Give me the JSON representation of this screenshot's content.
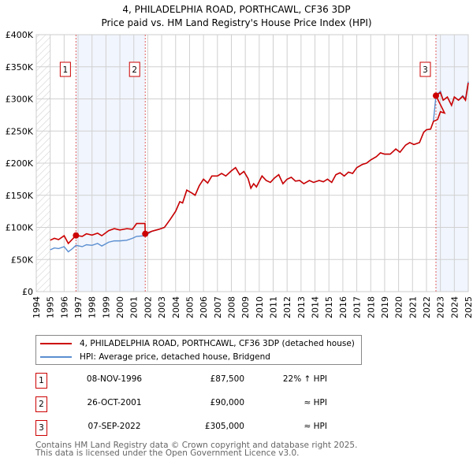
{
  "chart_data": {
    "type": "line",
    "title": "4, PHILADELPHIA ROAD, PORTHCAWL, CF36 3DP",
    "subtitle": "Price paid vs. HM Land Registry's House Price Index (HPI)",
    "xlim": [
      1994,
      2025
    ],
    "ylim": [
      0,
      400000
    ],
    "x_ticks": [
      "1994",
      "1995",
      "1996",
      "1997",
      "1998",
      "1999",
      "2000",
      "2001",
      "2002",
      "2003",
      "2004",
      "2005",
      "2006",
      "2007",
      "2008",
      "2009",
      "2010",
      "2011",
      "2012",
      "2013",
      "2014",
      "2015",
      "2016",
      "2017",
      "2018",
      "2019",
      "2020",
      "2021",
      "2022",
      "2023",
      "2024",
      "2025"
    ],
    "y_ticks": [
      {
        "v": 0,
        "l": "£0"
      },
      {
        "v": 50000,
        "l": "£50K"
      },
      {
        "v": 100000,
        "l": "£100K"
      },
      {
        "v": 150000,
        "l": "£150K"
      },
      {
        "v": 200000,
        "l": "£200K"
      },
      {
        "v": 250000,
        "l": "£250K"
      },
      {
        "v": 300000,
        "l": "£300K"
      },
      {
        "v": 350000,
        "l": "£350K"
      },
      {
        "v": 400000,
        "l": "£400K"
      }
    ],
    "grid": true,
    "shaded_periods": [
      [
        1996.85,
        2001.82
      ],
      [
        2022.68,
        2025
      ]
    ],
    "series": [
      {
        "name": "4, PHILADELPHIA ROAD, PORTHCAWL, CF36 3DP (detached house)",
        "color": "#cc0000",
        "points": [
          [
            1995,
            80000
          ],
          [
            1995.3,
            83000
          ],
          [
            1995.6,
            81000
          ],
          [
            1996,
            87000
          ],
          [
            1996.3,
            75000
          ],
          [
            1996.85,
            87500
          ],
          [
            1997.3,
            86000
          ],
          [
            1997.6,
            90000
          ],
          [
            1998,
            88000
          ],
          [
            1998.4,
            91000
          ],
          [
            1998.7,
            87000
          ],
          [
            1999.2,
            95000
          ],
          [
            1999.6,
            98000
          ],
          [
            2000,
            96000
          ],
          [
            2000.5,
            98000
          ],
          [
            2000.9,
            97000
          ],
          [
            2001.2,
            106000
          ],
          [
            2001.8,
            106000
          ],
          [
            2001.82,
            90000
          ],
          [
            2002.3,
            94000
          ],
          [
            2002.8,
            97000
          ],
          [
            2003.2,
            100000
          ],
          [
            2003.6,
            112000
          ],
          [
            2004,
            125000
          ],
          [
            2004.3,
            140000
          ],
          [
            2004.5,
            138000
          ],
          [
            2004.8,
            158000
          ],
          [
            2005.2,
            153000
          ],
          [
            2005.4,
            150000
          ],
          [
            2005.7,
            165000
          ],
          [
            2006,
            175000
          ],
          [
            2006.3,
            169000
          ],
          [
            2006.6,
            180000
          ],
          [
            2007,
            180000
          ],
          [
            2007.3,
            184000
          ],
          [
            2007.6,
            180000
          ],
          [
            2008,
            188000
          ],
          [
            2008.3,
            193000
          ],
          [
            2008.6,
            182000
          ],
          [
            2008.9,
            187000
          ],
          [
            2009.2,
            176000
          ],
          [
            2009.4,
            161000
          ],
          [
            2009.6,
            168000
          ],
          [
            2009.8,
            163000
          ],
          [
            2010.2,
            180000
          ],
          [
            2010.5,
            173000
          ],
          [
            2010.8,
            170000
          ],
          [
            2011.1,
            177000
          ],
          [
            2011.4,
            182000
          ],
          [
            2011.7,
            168000
          ],
          [
            2012,
            175000
          ],
          [
            2012.3,
            178000
          ],
          [
            2012.6,
            172000
          ],
          [
            2012.9,
            173000
          ],
          [
            2013.2,
            168000
          ],
          [
            2013.6,
            173000
          ],
          [
            2013.9,
            170000
          ],
          [
            2014.3,
            173000
          ],
          [
            2014.6,
            171000
          ],
          [
            2014.9,
            175000
          ],
          [
            2015.2,
            170000
          ],
          [
            2015.5,
            182000
          ],
          [
            2015.8,
            185000
          ],
          [
            2016.1,
            180000
          ],
          [
            2016.4,
            186000
          ],
          [
            2016.7,
            184000
          ],
          [
            2017,
            193000
          ],
          [
            2017.4,
            198000
          ],
          [
            2017.7,
            200000
          ],
          [
            2018,
            205000
          ],
          [
            2018.4,
            210000
          ],
          [
            2018.7,
            216000
          ],
          [
            2019,
            214000
          ],
          [
            2019.4,
            214000
          ],
          [
            2019.8,
            222000
          ],
          [
            2020.1,
            217000
          ],
          [
            2020.5,
            228000
          ],
          [
            2020.8,
            232000
          ],
          [
            2021.1,
            229000
          ],
          [
            2021.5,
            232000
          ],
          [
            2021.8,
            248000
          ],
          [
            2022,
            252000
          ],
          [
            2022.3,
            253000
          ],
          [
            2022.5,
            265000
          ],
          [
            2022.8,
            268000
          ],
          [
            2023,
            280000
          ],
          [
            2023.3,
            278000
          ],
          [
            2022.68,
            305000
          ],
          [
            2023,
            310000
          ],
          [
            2023.2,
            298000
          ],
          [
            2023.5,
            303000
          ],
          [
            2023.8,
            290000
          ],
          [
            2024,
            303000
          ],
          [
            2024.3,
            298000
          ],
          [
            2024.6,
            304000
          ],
          [
            2024.8,
            298000
          ],
          [
            2025,
            325000
          ]
        ]
      },
      {
        "name": "HPI: Average price, detached house, Bridgend",
        "color": "#5b8fd1",
        "points": [
          [
            1995,
            65000
          ],
          [
            1995.3,
            68000
          ],
          [
            1995.6,
            67000
          ],
          [
            1996,
            70000
          ],
          [
            1996.3,
            62000
          ],
          [
            1996.6,
            67000
          ],
          [
            1996.85,
            72000
          ],
          [
            1997.3,
            70000
          ],
          [
            1997.6,
            73000
          ],
          [
            1998,
            72000
          ],
          [
            1998.4,
            75000
          ],
          [
            1998.7,
            71000
          ],
          [
            1999.2,
            77000
          ],
          [
            1999.6,
            79000
          ],
          [
            2000,
            79000
          ],
          [
            2000.5,
            80000
          ],
          [
            2000.9,
            83000
          ],
          [
            2001.2,
            86000
          ],
          [
            2001.82,
            87000
          ],
          [
            2002.3,
            94000
          ],
          [
            2002.8,
            97000
          ],
          [
            2003.2,
            100000
          ],
          [
            2003.6,
            112000
          ],
          [
            2004,
            125000
          ],
          [
            2004.3,
            140000
          ],
          [
            2004.5,
            138000
          ],
          [
            2004.8,
            158000
          ],
          [
            2005.2,
            153000
          ],
          [
            2005.4,
            150000
          ],
          [
            2005.7,
            165000
          ],
          [
            2006,
            175000
          ],
          [
            2006.3,
            169000
          ],
          [
            2006.6,
            180000
          ],
          [
            2007,
            180000
          ],
          [
            2007.3,
            184000
          ],
          [
            2007.6,
            180000
          ],
          [
            2008,
            188000
          ],
          [
            2008.3,
            193000
          ],
          [
            2008.6,
            182000
          ],
          [
            2008.9,
            187000
          ],
          [
            2009.2,
            176000
          ],
          [
            2009.4,
            161000
          ],
          [
            2009.6,
            168000
          ],
          [
            2009.8,
            163000
          ],
          [
            2010.2,
            180000
          ],
          [
            2010.5,
            173000
          ],
          [
            2010.8,
            170000
          ],
          [
            2011.1,
            177000
          ],
          [
            2011.4,
            182000
          ],
          [
            2011.7,
            168000
          ],
          [
            2012,
            175000
          ],
          [
            2012.3,
            178000
          ],
          [
            2012.6,
            172000
          ],
          [
            2012.9,
            173000
          ],
          [
            2013.2,
            168000
          ],
          [
            2013.6,
            173000
          ],
          [
            2013.9,
            170000
          ],
          [
            2014.3,
            173000
          ],
          [
            2014.6,
            171000
          ],
          [
            2014.9,
            175000
          ],
          [
            2015.2,
            170000
          ],
          [
            2015.5,
            182000
          ],
          [
            2015.8,
            185000
          ],
          [
            2016.1,
            180000
          ],
          [
            2016.4,
            186000
          ],
          [
            2016.7,
            184000
          ],
          [
            2017,
            193000
          ],
          [
            2017.4,
            198000
          ],
          [
            2017.7,
            200000
          ],
          [
            2018,
            205000
          ],
          [
            2018.4,
            210000
          ],
          [
            2018.7,
            216000
          ],
          [
            2019,
            214000
          ],
          [
            2019.4,
            214000
          ],
          [
            2019.8,
            222000
          ],
          [
            2020.1,
            217000
          ],
          [
            2020.5,
            228000
          ],
          [
            2020.8,
            232000
          ],
          [
            2021.1,
            229000
          ],
          [
            2021.5,
            232000
          ],
          [
            2021.8,
            248000
          ],
          [
            2022,
            252000
          ],
          [
            2022.3,
            253000
          ],
          [
            2022.5,
            265000
          ],
          [
            2022.68,
            305000
          ],
          [
            2023,
            312000
          ],
          [
            2023.2,
            298000
          ],
          [
            2023.5,
            303000
          ],
          [
            2023.8,
            290000
          ],
          [
            2024,
            303000
          ],
          [
            2024.3,
            298000
          ],
          [
            2024.6,
            305000
          ],
          [
            2024.8,
            300000
          ],
          [
            2025,
            327000
          ]
        ]
      }
    ],
    "sales": [
      {
        "label": "1",
        "x": 1996.85,
        "y": 87500
      },
      {
        "label": "2",
        "x": 2001.82,
        "y": 90000
      },
      {
        "label": "3",
        "x": 2022.68,
        "y": 305000
      }
    ],
    "legend_placement": "below"
  },
  "legend": [
    {
      "label": "4, PHILADELPHIA ROAD, PORTHCAWL, CF36 3DP (detached house)",
      "color": "#cc0000"
    },
    {
      "label": "HPI: Average price, detached house, Bridgend",
      "color": "#5b8fd1"
    }
  ],
  "sales_table": [
    {
      "num": "1",
      "date": "08-NOV-1996",
      "price": "£87,500",
      "hpi": "22% ↑ HPI"
    },
    {
      "num": "2",
      "date": "26-OCT-2001",
      "price": "£90,000",
      "hpi": "≈ HPI"
    },
    {
      "num": "3",
      "date": "07-SEP-2022",
      "price": "£305,000",
      "hpi": "≈ HPI"
    }
  ],
  "footer": [
    "Contains HM Land Registry data © Crown copyright and database right 2025.",
    "This data is licensed under the Open Government Licence v3.0."
  ]
}
